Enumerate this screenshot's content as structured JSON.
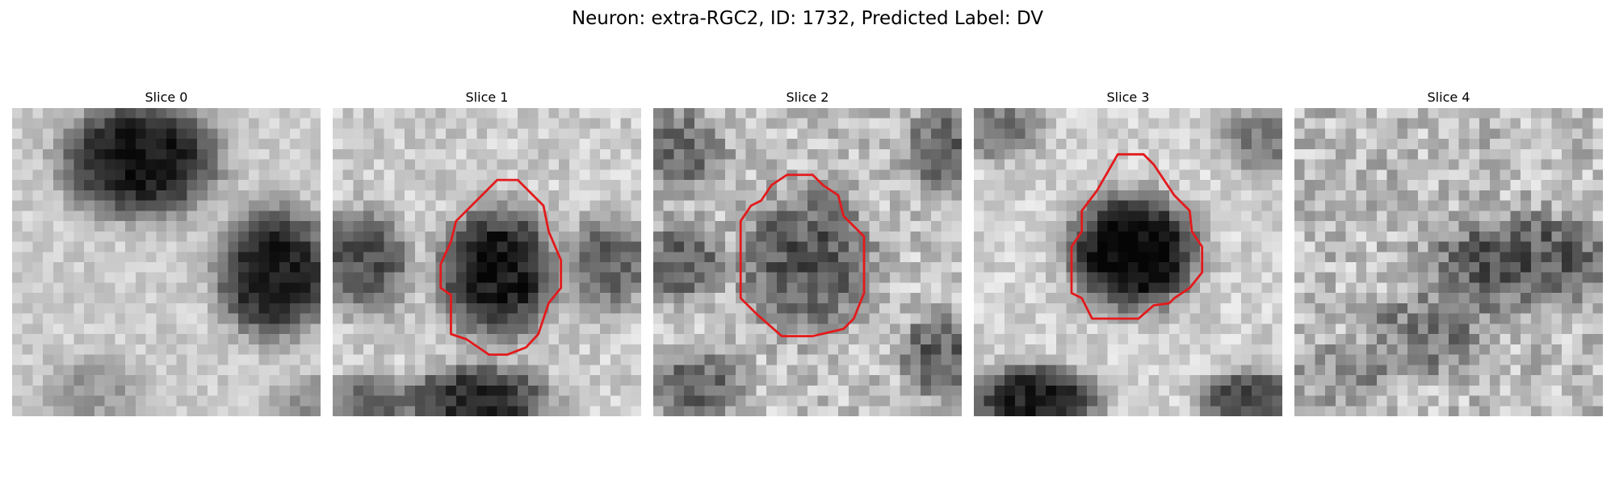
{
  "figure": {
    "title": "Neuron: extra-RGC2, ID: 1732, Predicted Label: DV"
  },
  "panels": [
    {
      "title": "Slice 0",
      "has_contour": false
    },
    {
      "title": "Slice 1",
      "has_contour": true
    },
    {
      "title": "Slice 2",
      "has_contour": true
    },
    {
      "title": "Slice 3",
      "has_contour": true
    },
    {
      "title": "Slice 4",
      "has_contour": false
    }
  ],
  "colors": {
    "contour": "#e31a1c",
    "colormap": "grayscale"
  }
}
